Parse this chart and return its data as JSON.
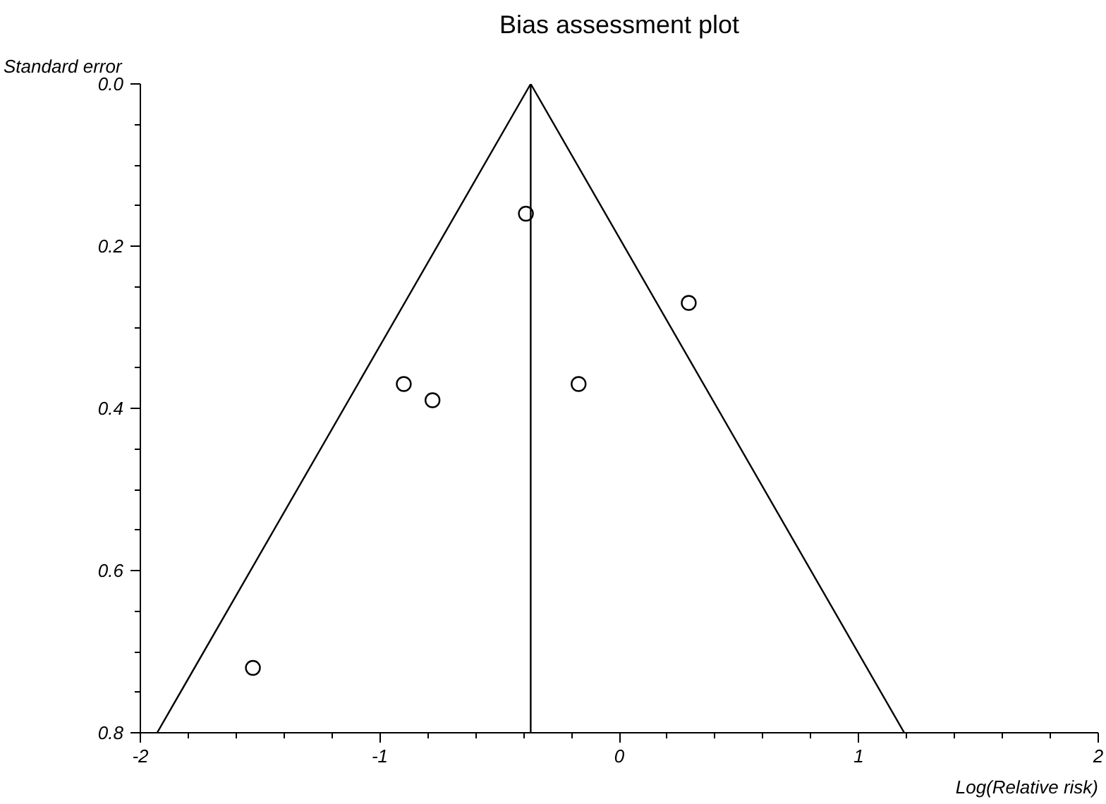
{
  "chart_data": {
    "type": "scatter",
    "title": "Bias assessment plot",
    "xlabel": "Log(Relative risk)",
    "ylabel": "Standard error",
    "x": [
      -0.39,
      0.29,
      -0.9,
      -0.78,
      -0.17,
      -1.53
    ],
    "series": [
      {
        "color": "#000000",
        "marker": "circle",
        "values": [
          0.16,
          0.27,
          0.37,
          0.39,
          0.37,
          0.72
        ]
      },
      {
        "type": "line",
        "color": "#000000",
        "marker": "none",
        "line_style": "solid",
        "x": [
          -1.93,
          -0.37,
          1.19
        ],
        "values": [
          0.8,
          0.0,
          0.8
        ]
      }
    ],
    "ref_lines": [
      {
        "axis": "x",
        "value": -0.37,
        "color": "#000000"
      }
    ],
    "xlim": [
      -2,
      2
    ],
    "ylim": [
      0.8,
      0.0
    ],
    "xticks": [
      {
        "value": -2,
        "label": "-2"
      },
      {
        "value": -1.8,
        "label": null
      },
      {
        "value": -1.6,
        "label": null
      },
      {
        "value": -1.4,
        "label": null
      },
      {
        "value": -1.2,
        "label": null
      },
      {
        "value": -1,
        "label": "-1"
      },
      {
        "value": -0.8,
        "label": null
      },
      {
        "value": -0.6,
        "label": null
      },
      {
        "value": -0.4,
        "label": null
      },
      {
        "value": -0.2,
        "label": null
      },
      {
        "value": 0,
        "label": "0"
      },
      {
        "value": 0.2,
        "label": null
      },
      {
        "value": 0.4,
        "label": null
      },
      {
        "value": 0.6,
        "label": null
      },
      {
        "value": 0.8,
        "label": null
      },
      {
        "value": 1,
        "label": "1"
      },
      {
        "value": 1.2,
        "label": null
      },
      {
        "value": 1.4,
        "label": null
      },
      {
        "value": 1.6,
        "label": null
      },
      {
        "value": 1.8,
        "label": null
      },
      {
        "value": 2,
        "label": "2"
      }
    ],
    "yticks": [
      {
        "value": 0.0,
        "label": "0.0"
      },
      {
        "value": 0.05,
        "label": null
      },
      {
        "value": 0.1,
        "label": null
      },
      {
        "value": 0.15,
        "label": null
      },
      {
        "value": 0.2,
        "label": "0.2"
      },
      {
        "value": 0.25,
        "label": null
      },
      {
        "value": 0.3,
        "label": null
      },
      {
        "value": 0.35,
        "label": null
      },
      {
        "value": 0.4,
        "label": "0.4"
      },
      {
        "value": 0.45,
        "label": null
      },
      {
        "value": 0.5,
        "label": null
      },
      {
        "value": 0.55,
        "label": null
      },
      {
        "value": 0.6,
        "label": "0.6"
      },
      {
        "value": 0.65,
        "label": null
      },
      {
        "value": 0.7,
        "label": null
      },
      {
        "value": 0.75,
        "label": null
      },
      {
        "value": 0.8,
        "label": "0.8"
      }
    ],
    "grid": false
  }
}
